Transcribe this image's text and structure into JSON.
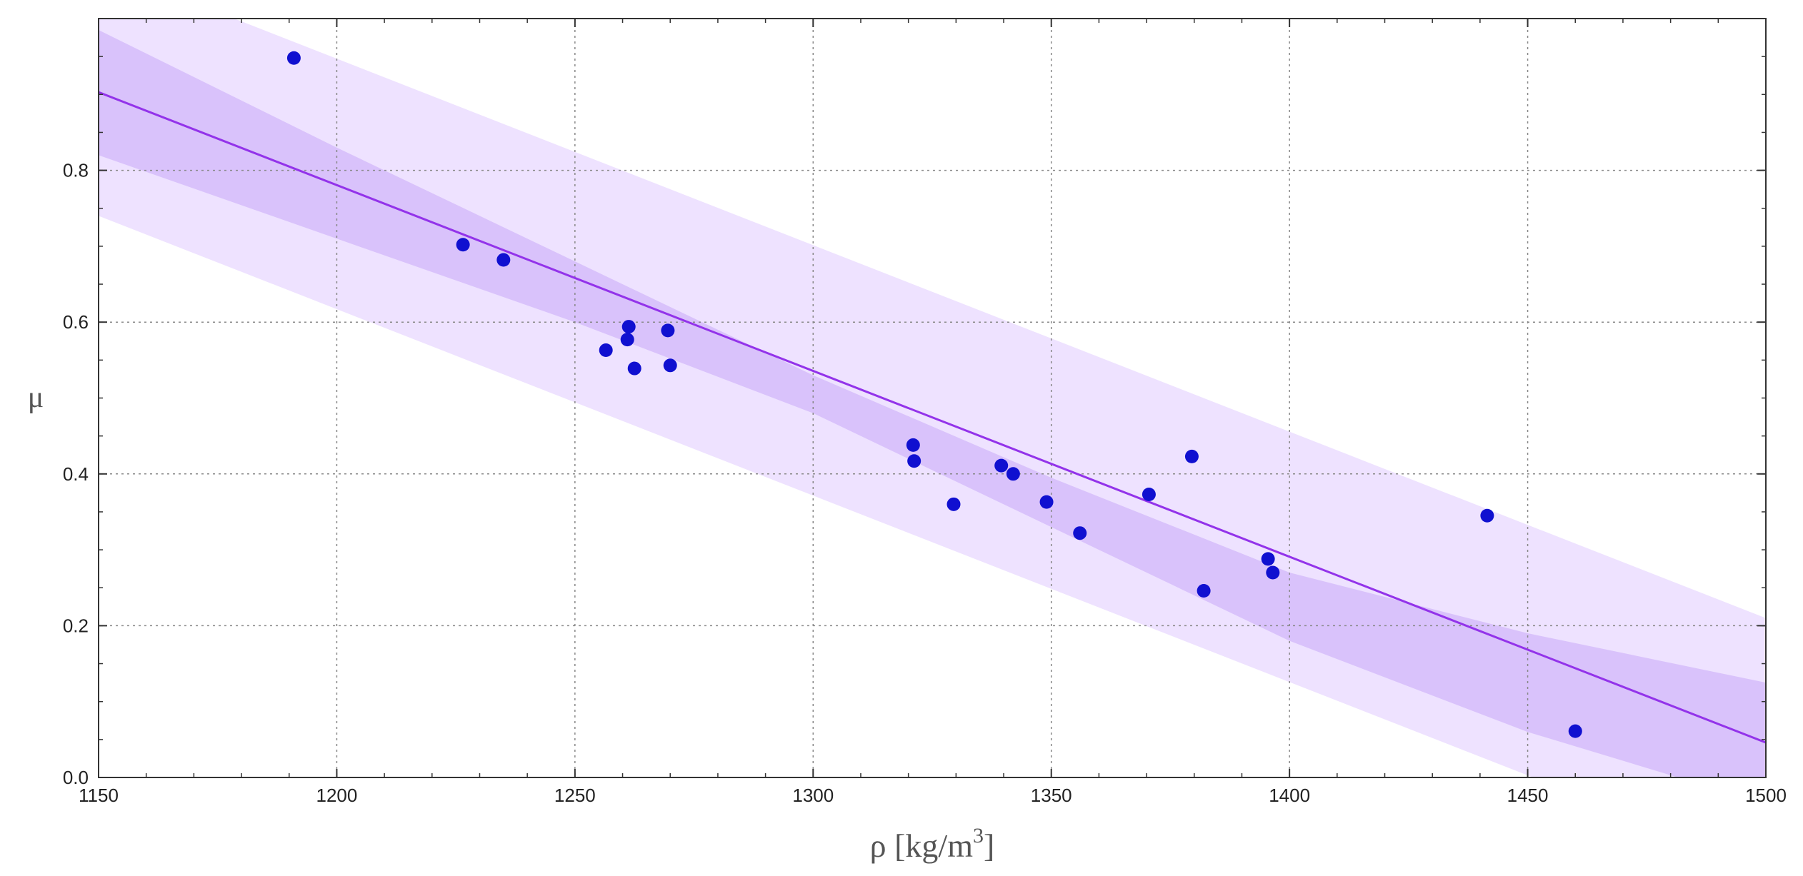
{
  "chart_data": {
    "type": "scatter",
    "title": "",
    "xlabel": "ρ [kg/m³]",
    "xlabel_main": "ρ [kg/m",
    "xlabel_sup": "3",
    "xlabel_close": "]",
    "ylabel": "μ",
    "xlim": [
      1150,
      1500
    ],
    "ylim": [
      0.0,
      1.0
    ],
    "grid": true,
    "x_ticks": [
      1150,
      1200,
      1250,
      1300,
      1350,
      1400,
      1450,
      1500
    ],
    "x_tick_labels": [
      "1150",
      "1200",
      "1250",
      "1300",
      "1350",
      "1400",
      "1450",
      "1500"
    ],
    "y_ticks": [
      0.0,
      0.2,
      0.4,
      0.6,
      0.8
    ],
    "y_tick_labels": [
      "0.0",
      "0.2",
      "0.4",
      "0.6",
      "0.8"
    ],
    "fit_line": {
      "x": [
        1150,
        1500
      ],
      "y": [
        0.903,
        0.046
      ]
    },
    "confidence_band": {
      "x": [
        1150,
        1200,
        1250,
        1300,
        1350,
        1400,
        1450,
        1500
      ],
      "upper": [
        0.985,
        0.83,
        0.68,
        0.53,
        0.395,
        0.27,
        0.19,
        0.125
      ],
      "lower": [
        0.82,
        0.71,
        0.6,
        0.48,
        0.33,
        0.18,
        0.06,
        -0.035
      ]
    },
    "prediction_band": {
      "x": [
        1150,
        1500
      ],
      "upper": [
        1.07,
        0.21
      ],
      "lower": [
        0.74,
        -0.12
      ]
    },
    "series": [
      {
        "name": "data",
        "points": [
          {
            "x": 1191,
            "y": 0.948
          },
          {
            "x": 1226.5,
            "y": 0.702
          },
          {
            "x": 1235,
            "y": 0.682
          },
          {
            "x": 1256.5,
            "y": 0.563
          },
          {
            "x": 1261,
            "y": 0.577
          },
          {
            "x": 1261.3,
            "y": 0.594
          },
          {
            "x": 1262.5,
            "y": 0.539
          },
          {
            "x": 1269.5,
            "y": 0.589
          },
          {
            "x": 1270,
            "y": 0.543
          },
          {
            "x": 1321,
            "y": 0.438
          },
          {
            "x": 1321.2,
            "y": 0.417
          },
          {
            "x": 1329.5,
            "y": 0.36
          },
          {
            "x": 1339.5,
            "y": 0.411
          },
          {
            "x": 1342,
            "y": 0.4
          },
          {
            "x": 1349,
            "y": 0.363
          },
          {
            "x": 1356,
            "y": 0.322
          },
          {
            "x": 1370.5,
            "y": 0.373
          },
          {
            "x": 1379.5,
            "y": 0.423
          },
          {
            "x": 1382,
            "y": 0.246
          },
          {
            "x": 1395.5,
            "y": 0.288
          },
          {
            "x": 1396.5,
            "y": 0.27
          },
          {
            "x": 1441.5,
            "y": 0.345
          },
          {
            "x": 1460,
            "y": 0.061
          }
        ]
      }
    ],
    "colors": {
      "point": "#1010d0",
      "line": "#9333ea",
      "prediction_band": "#eee2ff",
      "confidence_band": "#d9c2fb",
      "grid": "#888888",
      "frame": "#333333"
    }
  }
}
